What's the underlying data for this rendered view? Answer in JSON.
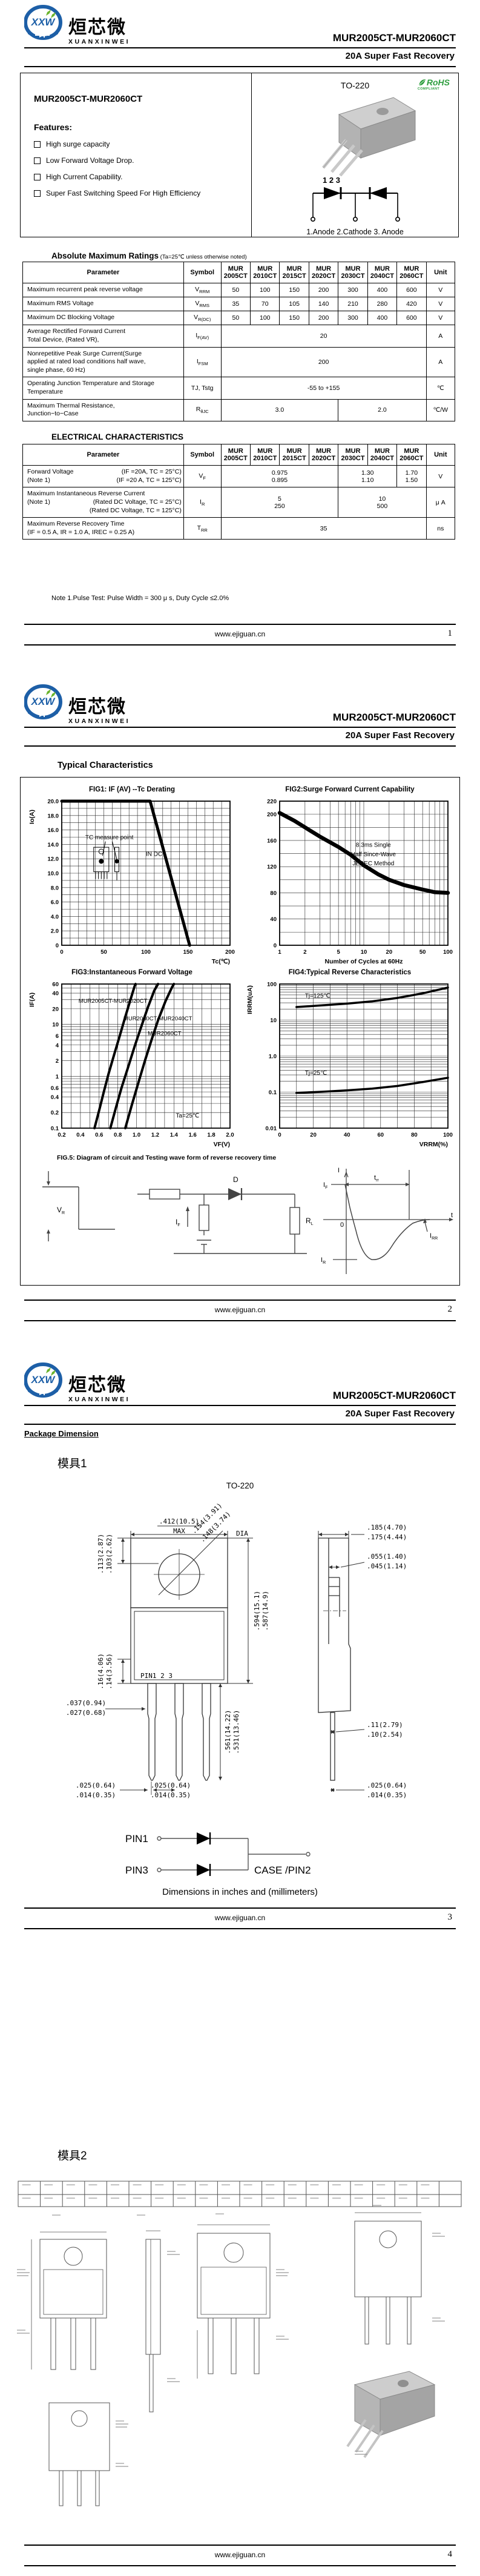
{
  "brand": {
    "logo_abbr": "XXW",
    "logo_cn": "烜芯微",
    "logo_en": "XUANXINWEI",
    "logo_blue": "#1d5fa7",
    "logo_green": "#6ab42d"
  },
  "header": {
    "part_range": "MUR2005CT-MUR2060CT",
    "subtitle": "20A Super Fast Recovery"
  },
  "footer": {
    "url": "www.ejiguan.cn",
    "pages": [
      "1",
      "2",
      "3",
      "4"
    ]
  },
  "page1": {
    "package_name": "TO-220",
    "rohs_line1": "RoHS",
    "rohs_line2": "COMPLIANT",
    "part_title": "MUR2005CT-MUR2060CT",
    "features_title": "Features:",
    "features": [
      "High surge capacity",
      "Low Forward Voltage Drop.",
      "High Current Capability.",
      "Super Fast Switching Speed For High Efficiency"
    ],
    "pin_numbers": "1 2 3",
    "pin_legend": "1.Anode   2.Cathode   3. Anode",
    "note": "Note 1.Pulse Test: Pulse Width = 300 μ s, Duty Cycle  ≤2.0%"
  },
  "tables": {
    "amr": {
      "title": "Absolute Maximum Ratings",
      "title_note": " (Ta=25℃ unless otherwise noted)",
      "headers": {
        "param": "Parameter",
        "symbol": "Symbol",
        "unit": "Unit",
        "models": [
          [
            "MUR",
            "2005CT"
          ],
          [
            "MUR",
            "2010CT"
          ],
          [
            "MUR",
            "2015CT"
          ],
          [
            "MUR",
            "2020CT"
          ],
          [
            "MUR",
            "2030CT"
          ],
          [
            "MUR",
            "2040CT"
          ],
          [
            "MUR",
            "2060CT"
          ]
        ]
      },
      "rows": [
        {
          "param_lines": [
            "Maximum recurrent peak reverse voltage"
          ],
          "symbol": {
            "base": "V",
            "sub": "RRM"
          },
          "cells": [
            {
              "t": "50"
            },
            {
              "t": "100"
            },
            {
              "t": "150"
            },
            {
              "t": "200"
            },
            {
              "t": "300"
            },
            {
              "t": "400"
            },
            {
              "t": "600"
            }
          ],
          "unit": "V"
        },
        {
          "param_lines": [
            "Maximum RMS Voltage"
          ],
          "symbol": {
            "base": "V",
            "sub": "RMS"
          },
          "cells": [
            {
              "t": "35"
            },
            {
              "t": "70"
            },
            {
              "t": "105"
            },
            {
              "t": "140"
            },
            {
              "t": "210"
            },
            {
              "t": "280"
            },
            {
              "t": "420"
            }
          ],
          "unit": "V"
        },
        {
          "param_lines": [
            "Maximum DC Blocking Voltage"
          ],
          "symbol": {
            "base": "V",
            "sub": "R(DC)"
          },
          "cells": [
            {
              "t": "50"
            },
            {
              "t": "100"
            },
            {
              "t": "150"
            },
            {
              "t": "200"
            },
            {
              "t": "300"
            },
            {
              "t": "400"
            },
            {
              "t": "600"
            }
          ],
          "unit": "V"
        },
        {
          "param_lines": [
            "Average Rectified Forward Current",
            "Total Device, (Rated VR),"
          ],
          "symbol": {
            "base": "I",
            "sub": "F(AV)"
          },
          "cells": [
            {
              "t": "20",
              "span": 7
            }
          ],
          "unit": "A"
        },
        {
          "param_lines": [
            "Nonrepetitive Peak Surge Current(Surge",
            "applied at rated load conditions half wave,",
            "single phase, 60 Hz)"
          ],
          "symbol": {
            "base": "I",
            "sub": "FSM"
          },
          "cells": [
            {
              "t": "200",
              "span": 7
            }
          ],
          "unit": "A"
        },
        {
          "param_lines": [
            "Operating Junction Temperature and Storage",
            "Temperature"
          ],
          "symbol": {
            "base": "TJ, Tstg",
            "sub": ""
          },
          "cells": [
            {
              "t": "-55 to +155",
              "span": 7
            }
          ],
          "unit": "℃"
        },
        {
          "param_lines": [
            "Maximum Thermal Resistance,",
            "Junction−to−Case"
          ],
          "symbol": {
            "base": "R",
            "sub": "θJC"
          },
          "cells": [
            {
              "t": "3.0",
              "span": 4
            },
            {
              "t": "2.0",
              "span": 3
            }
          ],
          "unit": "℃/W"
        }
      ]
    },
    "ec": {
      "title": "ELECTRICAL CHARACTERISTICS",
      "headers": {
        "param": "Parameter",
        "symbol": "Symbol",
        "unit": "Unit",
        "models": [
          [
            "MUR",
            "2005CT"
          ],
          [
            "MUR",
            "2010CT"
          ],
          [
            "MUR",
            "2015CT"
          ],
          [
            "MUR",
            "2020CT"
          ],
          [
            "MUR",
            "2030CT"
          ],
          [
            "MUR",
            "2040CT"
          ],
          [
            "MUR",
            "2060CT"
          ]
        ]
      },
      "rows": [
        {
          "param_pairs": [
            [
              "Forward Voltage",
              "(IF =20A, TC = 25°C)"
            ],
            [
              "(Note 1)",
              "(IF =20 A, TC = 125°C)"
            ]
          ],
          "symbol": {
            "base": "V",
            "sub": "F"
          },
          "cells": [
            {
              "lines": [
                "0.975",
                "0.895"
              ],
              "span": 4
            },
            {
              "lines": [
                "1.30",
                "1.10"
              ],
              "span": 2
            },
            {
              "lines": [
                "1.70",
                "1.50"
              ],
              "span": 1
            }
          ],
          "unit": "V"
        },
        {
          "param_pairs": [
            [
              "Maximum Instantaneous Reverse Current",
              ""
            ],
            [
              "(Note 1)",
              "(Rated DC Voltage, TC = 25°C)"
            ],
            [
              "",
              "(Rated DC Voltage, TC = 125°C)"
            ]
          ],
          "symbol": {
            "base": "I",
            "sub": "R"
          },
          "cells": [
            {
              "lines": [
                "5",
                "250"
              ],
              "span": 4
            },
            {
              "lines": [
                "10",
                "500"
              ],
              "span": 3
            }
          ],
          "unit": "μ A"
        },
        {
          "param_pairs": [
            [
              "Maximum Reverse Recovery Time",
              ""
            ],
            [
              "(IF = 0.5 A, IR = 1.0 A, IREC = 0.25 A)",
              ""
            ]
          ],
          "symbol": {
            "base": "T",
            "sub": "RR"
          },
          "cells": [
            {
              "t": "35",
              "span": 7
            }
          ],
          "unit": "ns"
        }
      ]
    }
  },
  "page2": {
    "section_title": "Typical Characteristics"
  },
  "chart_data": [
    {
      "id": "fig1",
      "type": "line",
      "title": "FIG1: IF (AV) --Tc Derating",
      "xlabel": "Tc(℃)",
      "ylabel": "Io(A)",
      "lw": 5,
      "x": {
        "min": 0,
        "max": 200,
        "scale": "linear",
        "ticks": [
          0,
          50,
          100,
          150,
          200
        ],
        "minor_step": 10
      },
      "y": {
        "min": 0,
        "max": 20,
        "scale": "linear",
        "ticks": [
          0,
          2,
          4,
          6,
          8,
          10,
          12,
          14,
          16,
          18,
          20
        ],
        "tick_labels": [
          "0",
          "2.0",
          "4.0",
          "6.0",
          "8.0",
          "10.0",
          "12.0",
          "14.0",
          "16.0",
          "18.0",
          "20.0"
        ],
        "minor_step": 1
      },
      "series": [
        {
          "name": "IF(AV) derating",
          "points": [
            [
              0,
              20
            ],
            [
              105,
              20
            ],
            [
              152,
              0
            ]
          ]
        }
      ],
      "annotations": [
        {
          "text": "TC measure point",
          "x": 28,
          "y": 14.7
        },
        {
          "text": "IN DC",
          "x": 100,
          "y": 12.4
        }
      ]
    },
    {
      "id": "fig2",
      "type": "line",
      "title": "FIG2:Surge Forward Current Capability",
      "xlabel": "Number of Cycles at 60Hz",
      "xlabel_center": true,
      "ylabel": "",
      "lw": 6.5,
      "x": {
        "min": 1,
        "max": 100,
        "scale": "log",
        "ticks": [
          1,
          2,
          5,
          10,
          20,
          50,
          100
        ]
      },
      "y": {
        "min": 0,
        "max": 220,
        "scale": "linear",
        "ticks": [
          0,
          40,
          80,
          120,
          160,
          200,
          220
        ],
        "minor_step": 20
      },
      "series": [
        {
          "name": "IFSM",
          "points": [
            [
              1,
              202
            ],
            [
              1.5,
              190
            ],
            [
              2,
              180
            ],
            [
              3,
              166
            ],
            [
              5,
              150
            ],
            [
              7,
              138
            ],
            [
              10,
              122
            ],
            [
              15,
              108
            ],
            [
              20,
              100
            ],
            [
              30,
              92
            ],
            [
              50,
              85
            ],
            [
              70,
              81
            ],
            [
              100,
              80
            ]
          ]
        }
      ],
      "annotations": [
        {
          "text": "8.3ms Single",
          "x": 13,
          "y": 150,
          "anchor": "middle"
        },
        {
          "text": "Half Since-Wave",
          "x": 13,
          "y": 136,
          "anchor": "middle"
        },
        {
          "text": "JEDEC Method",
          "x": 13,
          "y": 122,
          "anchor": "middle"
        }
      ]
    },
    {
      "id": "fig3",
      "type": "line",
      "title": "FIG3:Instantaneous Forward Voltage",
      "xlabel": "VF(V)",
      "ylabel": "IF(A)",
      "lw": 4,
      "x": {
        "min": 0.2,
        "max": 2.0,
        "scale": "linear",
        "ticks": [
          0.2,
          0.4,
          0.6,
          0.8,
          1.0,
          1.2,
          1.4,
          1.6,
          1.8,
          2.0
        ],
        "tick_labels": [
          "0.2",
          "0.4",
          "0.6",
          "0.8",
          "1.0",
          "1.2",
          "1.4",
          "1.6",
          "1.8",
          "2.0"
        ],
        "minor_step": 0.1
      },
      "y": {
        "min": 0.1,
        "max": 60,
        "scale": "log",
        "ticks": [
          0.1,
          0.2,
          0.4,
          0.6,
          1,
          2,
          4,
          6,
          10,
          20,
          40,
          60
        ],
        "tick_labels": [
          "0.1",
          "0.2",
          "0.4",
          "0.6",
          "1",
          "2",
          "4",
          "6",
          "10",
          "20",
          "40",
          "60"
        ]
      },
      "series": [
        {
          "name": "MUR2005CT-MUR2020CT",
          "points": [
            [
              0.55,
              0.1
            ],
            [
              0.6,
              0.22
            ],
            [
              0.65,
              0.5
            ],
            [
              0.7,
              1.1
            ],
            [
              0.76,
              2.6
            ],
            [
              0.82,
              6
            ],
            [
              0.88,
              14
            ],
            [
              0.94,
              32
            ],
            [
              0.98,
              55
            ],
            [
              0.99,
              60
            ]
          ]
        },
        {
          "name": "MUR2030CT-MUR2040CT",
          "points": [
            [
              0.72,
              0.1
            ],
            [
              0.78,
              0.25
            ],
            [
              0.84,
              0.6
            ],
            [
              0.91,
              1.5
            ],
            [
              0.98,
              3.8
            ],
            [
              1.05,
              9
            ],
            [
              1.12,
              21
            ],
            [
              1.19,
              45
            ],
            [
              1.23,
              60
            ]
          ]
        },
        {
          "name": "MUR2060CT",
          "points": [
            [
              0.88,
              0.1
            ],
            [
              0.95,
              0.28
            ],
            [
              1.02,
              0.75
            ],
            [
              1.09,
              2
            ],
            [
              1.16,
              5
            ],
            [
              1.23,
              12
            ],
            [
              1.31,
              28
            ],
            [
              1.38,
              52
            ],
            [
              1.4,
              60
            ]
          ]
        }
      ],
      "annotations": [
        {
          "text": "MUR2005CT-MUR2020CT",
          "x": 0.38,
          "y": 26,
          "size": 9.5
        },
        {
          "text": "MUR2030CT-MUR2040CT",
          "x": 0.86,
          "y": 12,
          "size": 9.5
        },
        {
          "text": "MUR2060CT",
          "x": 1.12,
          "y": 6.2,
          "size": 9.5
        },
        {
          "text": "Ta=25℃",
          "x": 1.42,
          "y": 0.16
        }
      ]
    },
    {
      "id": "fig4",
      "type": "line",
      "title": "FIG4:Typical Reverse Characteristics",
      "xlabel": "VRRM(%)",
      "ylabel": "IRRM(uA)",
      "lw": 3.5,
      "x": {
        "min": 0,
        "max": 100,
        "scale": "linear",
        "ticks": [
          0,
          20,
          40,
          60,
          80,
          100
        ],
        "minor_step": 10
      },
      "y": {
        "min": 0.01,
        "max": 100,
        "scale": "log",
        "ticks": [
          0.01,
          0.1,
          1,
          10,
          100
        ],
        "tick_labels": [
          "0.01",
          "0.1",
          "1.0",
          "10",
          "100"
        ]
      },
      "series": [
        {
          "name": "Tj=125℃",
          "points": [
            [
              10,
              23
            ],
            [
              25,
              25.5
            ],
            [
              40,
              28.5
            ],
            [
              55,
              33
            ],
            [
              70,
              41
            ],
            [
              85,
              55
            ],
            [
              100,
              80
            ]
          ]
        },
        {
          "name": "Tj=25℃",
          "points": [
            [
              10,
              0.095
            ],
            [
              25,
              0.102
            ],
            [
              40,
              0.112
            ],
            [
              55,
              0.125
            ],
            [
              70,
              0.148
            ],
            [
              85,
              0.19
            ],
            [
              100,
              0.25
            ]
          ]
        }
      ],
      "annotations": [
        {
          "text": "Tj=125℃",
          "x": 15,
          "y": 42
        },
        {
          "text": "Tj=25℃",
          "x": 15,
          "y": 0.3
        }
      ]
    }
  ],
  "fig5": {
    "caption": "FIG.5: Diagram of circuit and Testing wave form of reverse recovery time",
    "d": "D",
    "i": "I",
    "zero": "0",
    "t": "t",
    "vr": [
      "V",
      "R"
    ],
    "if_c": [
      "I",
      "F"
    ],
    "rl": [
      "R",
      "L"
    ],
    "trr": [
      "t",
      "rr"
    ],
    "if_w": [
      "I",
      "F"
    ],
    "irr": [
      "I",
      "RR"
    ],
    "ir": [
      "I",
      "R"
    ]
  },
  "page3": {
    "section_title": "Package Dimension",
    "mold": "模具1",
    "package": "TO-220",
    "pins_label": "PIN1 2    3",
    "dims": {
      "width": ".412(10.5)",
      "width_max": "MAX",
      "hole1": ".154(3.91)",
      "hole2": ".148(3.74)",
      "dia": "DIA",
      "top1": ".113(2.87)",
      "top2": ".103(2.62)",
      "tab1": ".16(4.06)",
      "tab2": ".14(3.56)",
      "bodyh1": ".594(15.1)",
      "bodyh2": ".587(14.9)",
      "leadl1": ".561(14.22)",
      "leadl2": ".531(13.46)",
      "leadw1": ".037(0.94)",
      "leadw2": ".027(0.68)",
      "leadt1": ".025(0.64)",
      "leadt2": ".014(0.35)",
      "leadt3": ".025(0.64)",
      "leadt4": ".014(0.35)",
      "sidew1": ".185(4.70)",
      "sidew2": ".175(4.44)",
      "step1": ".055(1.40)",
      "step2": ".045(1.14)",
      "pitch1": ".11(2.79)",
      "pitch2": ".10(2.54)",
      "sidet1": ".025(0.64)",
      "sidet2": ".014(0.35)"
    },
    "schematic": {
      "pin1": "PIN1",
      "pin3": "PIN3",
      "case": "CASE /PIN2"
    },
    "caption": "Dimensions in inches and (millimeters)"
  },
  "page4": {
    "mold": "模具2"
  }
}
